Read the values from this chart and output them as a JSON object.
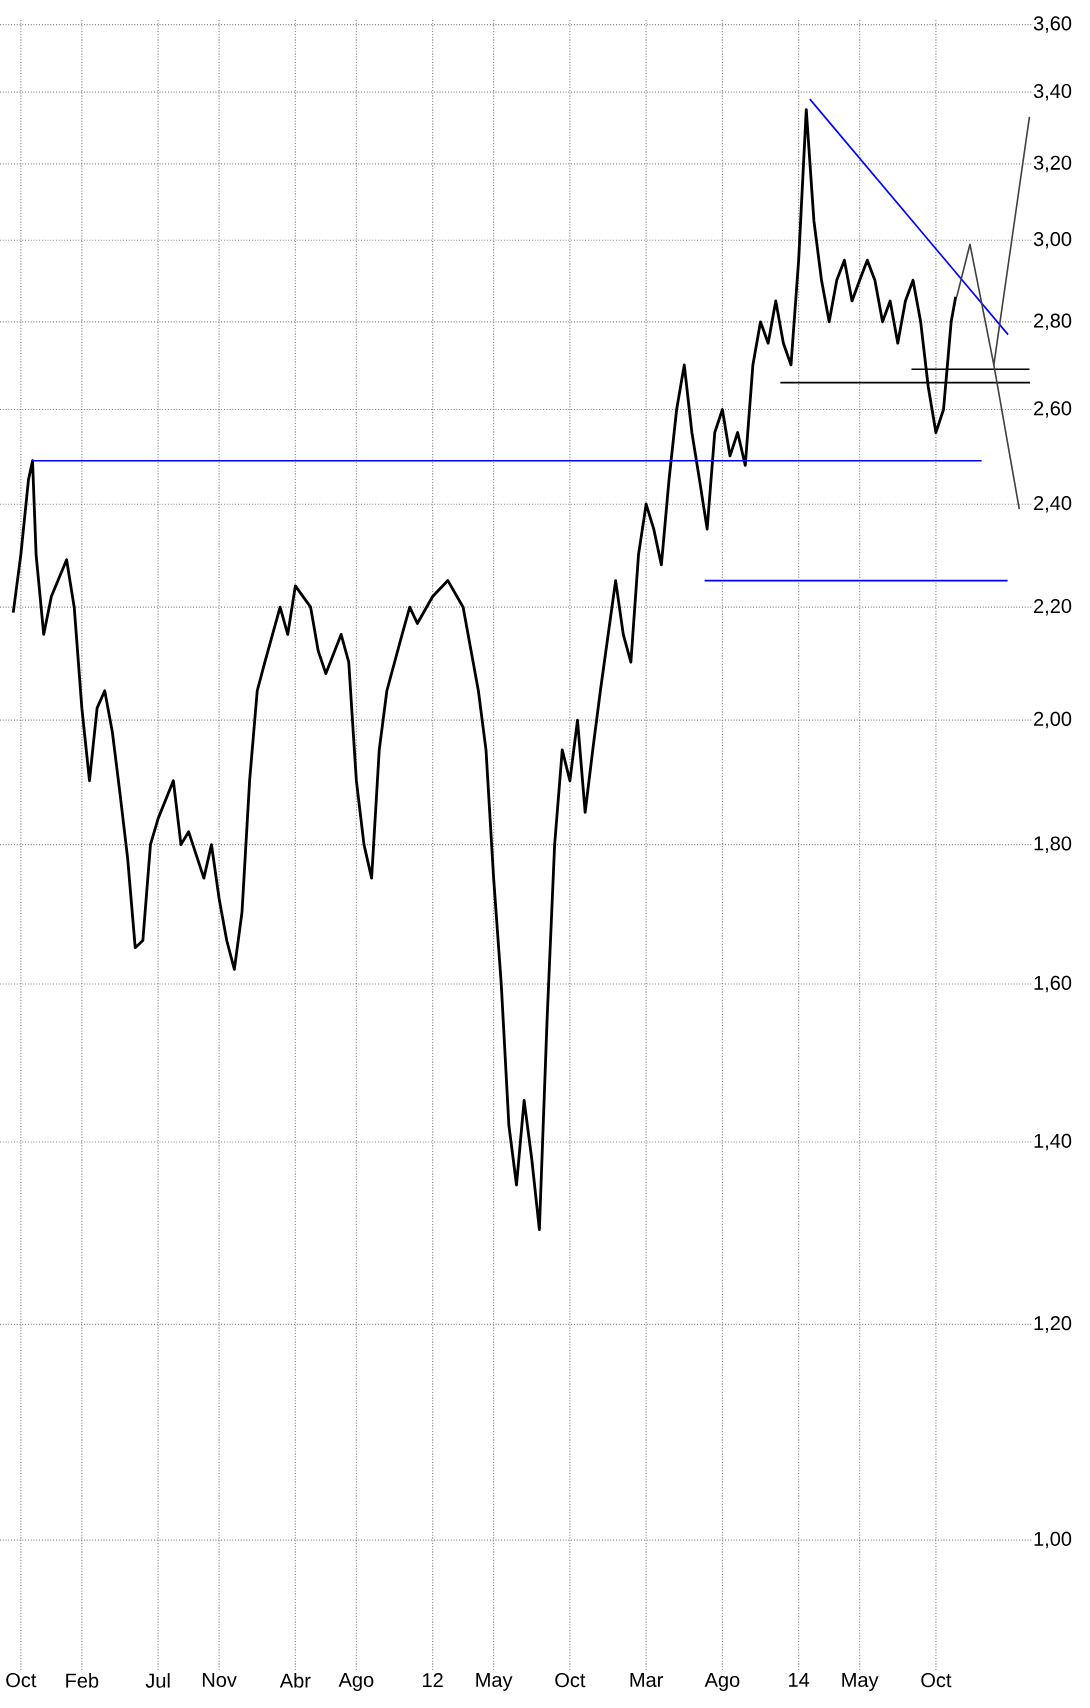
{
  "chart_data": {
    "type": "line",
    "log": "y",
    "grid": true,
    "xlim": [
      "2009-08-20",
      "2015-04-10"
    ],
    "ylim": [
      0.896,
      3.62
    ],
    "xticks": [
      {
        "value": "2009-10-01",
        "label": "Oct"
      },
      {
        "value": "2010-02-01",
        "label": "Feb"
      },
      {
        "value": "2010-07-01",
        "label": "Jul"
      },
      {
        "value": "2010-11-01",
        "label": "Nov"
      },
      {
        "value": "2011-04-01",
        "label": "Abr"
      },
      {
        "value": "2011-08-01",
        "label": "Ago"
      },
      {
        "value": "2012-01-01",
        "label": "12"
      },
      {
        "value": "2012-05-01",
        "label": "May"
      },
      {
        "value": "2012-10-01",
        "label": "Oct"
      },
      {
        "value": "2013-03-01",
        "label": "Mar"
      },
      {
        "value": "2013-08-01",
        "label": "Ago"
      },
      {
        "value": "2014-01-01",
        "label": "14"
      },
      {
        "value": "2014-05-01",
        "label": "May"
      },
      {
        "value": "2014-10-01",
        "label": "Oct"
      }
    ],
    "yticks": [
      {
        "value": 1.0,
        "label": "1,00"
      },
      {
        "value": 1.2,
        "label": "1,20"
      },
      {
        "value": 1.4,
        "label": "1,40"
      },
      {
        "value": 1.6,
        "label": "1,60"
      },
      {
        "value": 1.8,
        "label": "1,80"
      },
      {
        "value": 2.0,
        "label": "2,00"
      },
      {
        "value": 2.2,
        "label": "2,20"
      },
      {
        "value": 2.4,
        "label": "2,40"
      },
      {
        "value": 2.6,
        "label": "2,60"
      },
      {
        "value": 2.8,
        "label": "2,80"
      },
      {
        "value": 3.0,
        "label": "3,00"
      },
      {
        "value": 3.2,
        "label": "3,20"
      },
      {
        "value": 3.4,
        "label": "3,40"
      },
      {
        "value": 3.6,
        "label": "3,60"
      }
    ],
    "series": [
      {
        "color": "#000000",
        "x": [
          "2009-09-16",
          "2009-10-01",
          "2009-10-16",
          "2009-10-24",
          "2009-11-01",
          "2009-11-16",
          "2009-12-01",
          "2010-01-01",
          "2010-01-16",
          "2010-02-01",
          "2010-02-16",
          "2010-03-01",
          "2010-03-16",
          "2010-04-01",
          "2010-04-16",
          "2010-05-01",
          "2010-05-16",
          "2010-06-01",
          "2010-06-16",
          "2010-07-01",
          "2010-08-01",
          "2010-08-16",
          "2010-09-01",
          "2010-10-01",
          "2010-10-16",
          "2010-11-01",
          "2010-11-16",
          "2010-12-01",
          "2010-12-16",
          "2011-01-01",
          "2011-01-16",
          "2011-02-01",
          "2011-03-01",
          "2011-03-16",
          "2011-04-01",
          "2011-05-01",
          "2011-05-16",
          "2011-06-01",
          "2011-07-01",
          "2011-07-16",
          "2011-08-01",
          "2011-08-16",
          "2011-09-01",
          "2011-09-16",
          "2011-10-01",
          "2011-11-01",
          "2011-11-16",
          "2011-12-01",
          "2012-01-01",
          "2012-02-01",
          "2012-03-01",
          "2012-04-01",
          "2012-04-16",
          "2012-05-01",
          "2012-05-16",
          "2012-06-01",
          "2012-06-16",
          "2012-07-01",
          "2012-07-16",
          "2012-08-01",
          "2012-08-16",
          "2012-09-01",
          "2012-09-16",
          "2012-10-01",
          "2012-10-16",
          "2012-11-01",
          "2012-11-16",
          "2012-12-01",
          "2013-01-01",
          "2013-01-16",
          "2013-02-01",
          "2013-02-16",
          "2013-03-01",
          "2013-03-16",
          "2013-04-01",
          "2013-04-16",
          "2013-05-01",
          "2013-05-16",
          "2013-06-01",
          "2013-06-16",
          "2013-07-01",
          "2013-07-16",
          "2013-08-01",
          "2013-08-16",
          "2013-09-01",
          "2013-09-16",
          "2013-10-01",
          "2013-10-16",
          "2013-11-01",
          "2013-11-16",
          "2013-12-01",
          "2013-12-16",
          "2014-01-01",
          "2014-01-16",
          "2014-02-01",
          "2014-02-16",
          "2014-03-01",
          "2014-03-16",
          "2014-04-01",
          "2014-04-16",
          "2014-05-01",
          "2014-05-16",
          "2014-06-01",
          "2014-06-16",
          "2014-07-01",
          "2014-07-16",
          "2014-08-01",
          "2014-08-16",
          "2014-09-01",
          "2014-09-16",
          "2014-10-01",
          "2014-10-16",
          "2014-11-01",
          "2014-11-10"
        ],
        "values": [
          2.19,
          2.3,
          2.45,
          2.49,
          2.3,
          2.15,
          2.22,
          2.29,
          2.2,
          2.02,
          1.9,
          2.02,
          2.05,
          1.98,
          1.88,
          1.78,
          1.65,
          1.66,
          1.8,
          1.84,
          1.9,
          1.8,
          1.82,
          1.75,
          1.8,
          1.72,
          1.66,
          1.62,
          1.7,
          1.9,
          2.05,
          2.1,
          2.2,
          2.15,
          2.24,
          2.2,
          2.12,
          2.08,
          2.15,
          2.1,
          1.9,
          1.8,
          1.75,
          1.95,
          2.05,
          2.15,
          2.2,
          2.17,
          2.22,
          2.25,
          2.2,
          2.05,
          1.95,
          1.75,
          1.6,
          1.42,
          1.35,
          1.45,
          1.38,
          1.3,
          1.55,
          1.8,
          1.95,
          1.9,
          2.0,
          1.85,
          1.95,
          2.05,
          2.25,
          2.15,
          2.1,
          2.3,
          2.4,
          2.35,
          2.28,
          2.45,
          2.6,
          2.7,
          2.55,
          2.45,
          2.35,
          2.55,
          2.6,
          2.5,
          2.55,
          2.48,
          2.7,
          2.8,
          2.75,
          2.85,
          2.75,
          2.7,
          2.95,
          3.35,
          3.05,
          2.9,
          2.8,
          2.9,
          2.95,
          2.85,
          2.9,
          2.95,
          2.9,
          2.8,
          2.85,
          2.75,
          2.85,
          2.9,
          2.8,
          2.65,
          2.55,
          2.6,
          2.8,
          2.86
        ]
      },
      {
        "color": "#0000ff",
        "x": [
          "2009-10-24",
          "2015-01-01"
        ],
        "values": [
          2.49,
          2.49
        ]
      },
      {
        "color": "#0000ff",
        "x": [
          "2013-06-26",
          "2015-02-22"
        ],
        "values": [
          2.25,
          2.25
        ]
      },
      {
        "color": "#0000ff",
        "x": [
          "2014-01-23",
          "2015-02-23"
        ],
        "values": [
          3.38,
          2.77
        ]
      },
      {
        "color": "#000000",
        "x": [
          "2013-11-25",
          "2015-04-06"
        ],
        "values": [
          2.66,
          2.66
        ]
      },
      {
        "color": "#000000",
        "x": [
          "2014-08-13",
          "2015-04-05"
        ],
        "values": [
          2.69,
          2.69
        ]
      },
      {
        "color": "#404040",
        "x": [
          "2014-11-12",
          "2014-12-08",
          "2015-01-25",
          "2015-04-05"
        ],
        "values": [
          2.86,
          2.99,
          2.7,
          3.33
        ]
      },
      {
        "color": "#404040",
        "x": [
          "2015-01-25",
          "2015-03-15"
        ],
        "values": [
          2.7,
          2.39
        ]
      }
    ]
  }
}
